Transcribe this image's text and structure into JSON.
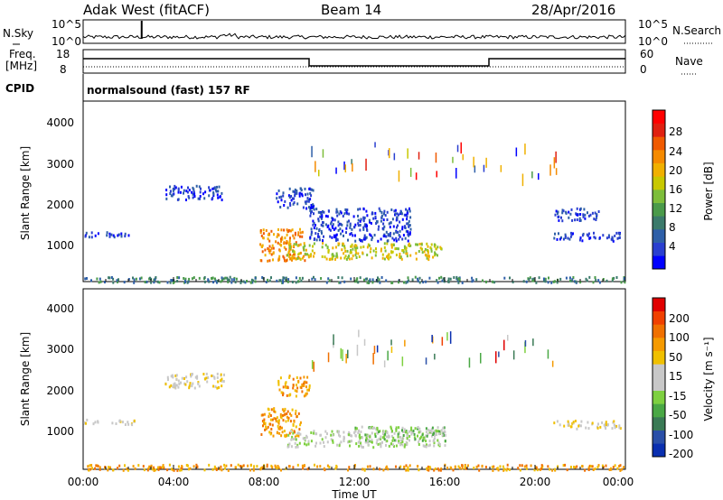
{
  "header": {
    "station": "Adak West (fitACF)",
    "beam": "Beam 14",
    "date": "28/Apr/2016"
  },
  "noise_panel": {
    "left_label": "N.Sky",
    "right_label": "N.Search",
    "left_ticks": [
      "10^5",
      "10^0"
    ],
    "right_ticks": [
      "10^5",
      "10^0"
    ]
  },
  "freq_panel": {
    "left_label_line1": "Freq.",
    "left_label_line2": "[MHz]",
    "right_label": "Nave",
    "left_ticks": [
      "18",
      "8"
    ],
    "right_ticks": [
      "60",
      "0"
    ]
  },
  "cpid": {
    "label": "CPID",
    "text": "normalsound (fast) 157 RF"
  },
  "colorbars": {
    "power": {
      "label": "Power [dB]",
      "ticks": [
        "28",
        "24",
        "20",
        "16",
        "12",
        "8",
        "4"
      ],
      "colors": [
        "#0000ff",
        "#2a3fd0",
        "#2e5fa8",
        "#3b7a6b",
        "#4a9a4a",
        "#7dbd3a",
        "#c8c800",
        "#f0b000",
        "#f58a00",
        "#f05a00",
        "#e02010",
        "#ff0000"
      ]
    },
    "velocity": {
      "label": "Velocity [m s⁻¹]",
      "ticks": [
        "200",
        "100",
        "50",
        "15",
        "-15",
        "-50",
        "-100",
        "-200"
      ],
      "colors": [
        "#0a2fb0",
        "#2a4fa8",
        "#3a7a55",
        "#4aa845",
        "#7ed040",
        "#c8c8c8",
        "#c8c8c8",
        "#f0c000",
        "#f59a00",
        "#f07000",
        "#f04000",
        "#e00000"
      ]
    }
  },
  "chart_data": [
    {
      "type": "heatmap",
      "name": "power",
      "xlabel": "",
      "ylabel": "Slant Range [km]",
      "ylim": [
        180,
        4600
      ],
      "yticks": [
        "4000",
        "3000",
        "2000",
        "1000"
      ],
      "xlim_hours": [
        0,
        24
      ],
      "blobs": [
        {
          "t0": 0.0,
          "t1": 2.3,
          "r0": 1300,
          "r1": 1420,
          "color_index": 1
        },
        {
          "t0": 3.6,
          "t1": 6.2,
          "r0": 2200,
          "r1": 2550,
          "color_index": 1
        },
        {
          "t0": 7.8,
          "t1": 9.8,
          "r0": 700,
          "r1": 1500,
          "color_index": 8
        },
        {
          "t0": 9.0,
          "t1": 15.9,
          "r0": 750,
          "r1": 1150,
          "color_index": 6
        },
        {
          "t0": 10.0,
          "t1": 14.5,
          "r0": 1200,
          "r1": 2000,
          "color_index": 1
        },
        {
          "t0": 8.5,
          "t1": 10.2,
          "r0": 2000,
          "r1": 2500,
          "color_index": 1
        },
        {
          "t0": 20.8,
          "t1": 23.8,
          "r0": 1200,
          "r1": 1400,
          "color_index": 1
        },
        {
          "t0": 20.8,
          "t1": 22.8,
          "r0": 1700,
          "r1": 2000,
          "color_index": 1
        },
        {
          "t0": 0.0,
          "t1": 24.0,
          "r0": 180,
          "r1": 320,
          "color_index": 3
        }
      ]
    },
    {
      "type": "heatmap",
      "name": "velocity",
      "xlabel": "Time UT",
      "ylabel": "Slant Range [km]",
      "ylim": [
        180,
        4600
      ],
      "yticks": [
        "4000",
        "3000",
        "2000",
        "1000"
      ],
      "xlim_hours": [
        0,
        24
      ],
      "xticks": [
        "00:00",
        "04:00",
        "08:00",
        "12:00",
        "16:00",
        "20:00",
        "00:00"
      ],
      "blobs": [
        {
          "t0": 0.0,
          "t1": 2.3,
          "r0": 1300,
          "r1": 1420,
          "color_index": 6
        },
        {
          "t0": 3.6,
          "t1": 6.2,
          "r0": 2200,
          "r1": 2550,
          "color_index": 6
        },
        {
          "t0": 7.8,
          "t1": 9.6,
          "r0": 1000,
          "r1": 1700,
          "color_index": 8
        },
        {
          "t0": 9.0,
          "t1": 16.0,
          "r0": 750,
          "r1": 1150,
          "color_index": 5
        },
        {
          "t0": 12.0,
          "t1": 16.0,
          "r0": 900,
          "r1": 1250,
          "color_index": 4
        },
        {
          "t0": 8.6,
          "t1": 10.0,
          "r0": 2000,
          "r1": 2500,
          "color_index": 8
        },
        {
          "t0": 20.8,
          "t1": 23.8,
          "r0": 1200,
          "r1": 1400,
          "color_index": 6
        },
        {
          "t0": 0.0,
          "t1": 24.0,
          "r0": 180,
          "r1": 320,
          "color_index": 8
        }
      ]
    }
  ]
}
